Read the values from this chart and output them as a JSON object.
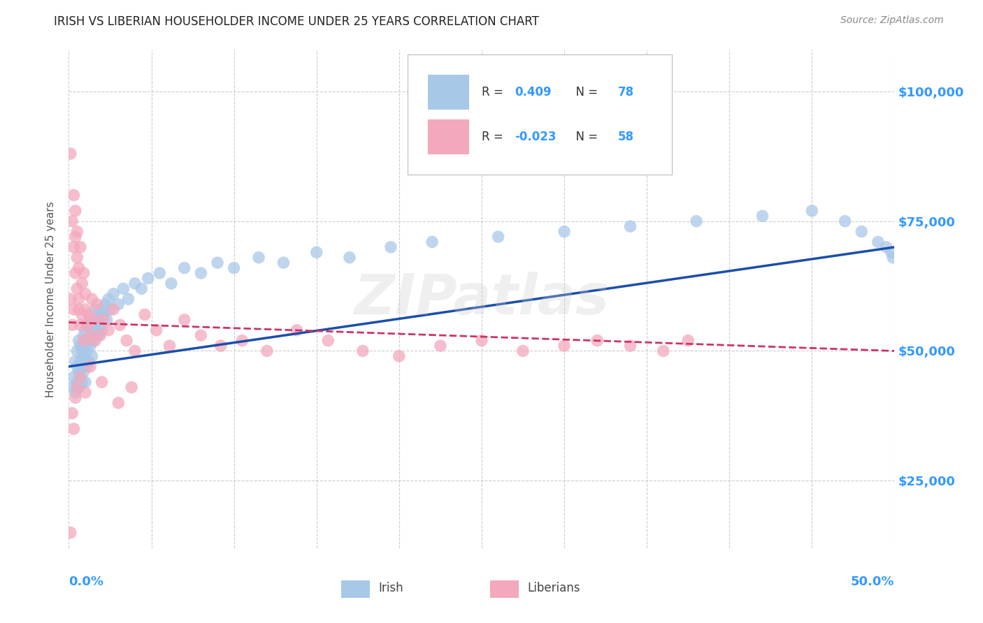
{
  "title": "IRISH VS LIBERIAN HOUSEHOLDER INCOME UNDER 25 YEARS CORRELATION CHART",
  "source": "Source: ZipAtlas.com",
  "ylabel": "Householder Income Under 25 years",
  "xlim": [
    0.0,
    0.5
  ],
  "ylim": [
    12000,
    108000
  ],
  "yticks": [
    25000,
    50000,
    75000,
    100000
  ],
  "ytick_labels": [
    "$25,000",
    "$50,000",
    "$75,000",
    "$100,000"
  ],
  "irish_R": 0.409,
  "irish_N": 78,
  "liberian_R": -0.023,
  "liberian_N": 58,
  "irish_color": "#a8c8e8",
  "liberian_color": "#f4a8bc",
  "irish_line_color": "#1a4faa",
  "liberian_line_color": "#cc3366",
  "background_color": "#ffffff",
  "grid_color": "#cccccc",
  "irish_line_x0": 0.0,
  "irish_line_x1": 0.5,
  "irish_line_y0": 47000,
  "irish_line_y1": 70000,
  "liberian_line_x0": 0.0,
  "liberian_line_x1": 0.5,
  "liberian_line_y0": 55500,
  "liberian_line_y1": 50000,
  "irish_x": [
    0.002,
    0.003,
    0.004,
    0.004,
    0.005,
    0.005,
    0.005,
    0.006,
    0.006,
    0.006,
    0.007,
    0.007,
    0.007,
    0.008,
    0.008,
    0.008,
    0.009,
    0.009,
    0.009,
    0.01,
    0.01,
    0.01,
    0.01,
    0.011,
    0.011,
    0.011,
    0.012,
    0.012,
    0.013,
    0.013,
    0.014,
    0.014,
    0.015,
    0.015,
    0.016,
    0.016,
    0.017,
    0.018,
    0.018,
    0.019,
    0.02,
    0.02,
    0.021,
    0.022,
    0.023,
    0.024,
    0.025,
    0.027,
    0.03,
    0.033,
    0.036,
    0.04,
    0.044,
    0.048,
    0.055,
    0.062,
    0.07,
    0.08,
    0.09,
    0.1,
    0.115,
    0.13,
    0.15,
    0.17,
    0.195,
    0.22,
    0.26,
    0.3,
    0.34,
    0.38,
    0.42,
    0.45,
    0.47,
    0.48,
    0.49,
    0.495,
    0.498,
    0.499
  ],
  "irish_y": [
    43000,
    45000,
    42000,
    48000,
    44000,
    47000,
    50000,
    43000,
    46000,
    52000,
    48000,
    45000,
    51000,
    47000,
    44000,
    50000,
    49000,
    46000,
    53000,
    48000,
    51000,
    44000,
    54000,
    50000,
    47000,
    55000,
    52000,
    48000,
    51000,
    56000,
    53000,
    49000,
    55000,
    52000,
    54000,
    58000,
    56000,
    53000,
    57000,
    55000,
    58000,
    54000,
    57000,
    59000,
    56000,
    60000,
    58000,
    61000,
    59000,
    62000,
    60000,
    63000,
    62000,
    64000,
    65000,
    63000,
    66000,
    65000,
    67000,
    66000,
    68000,
    67000,
    69000,
    68000,
    70000,
    71000,
    72000,
    73000,
    74000,
    75000,
    76000,
    77000,
    75000,
    73000,
    71000,
    70000,
    69000,
    68000
  ],
  "liberian_x": [
    0.001,
    0.001,
    0.002,
    0.002,
    0.003,
    0.003,
    0.003,
    0.004,
    0.004,
    0.004,
    0.005,
    0.005,
    0.005,
    0.006,
    0.006,
    0.006,
    0.007,
    0.007,
    0.008,
    0.008,
    0.009,
    0.009,
    0.01,
    0.01,
    0.011,
    0.012,
    0.013,
    0.014,
    0.015,
    0.016,
    0.017,
    0.019,
    0.021,
    0.024,
    0.027,
    0.031,
    0.035,
    0.04,
    0.046,
    0.053,
    0.061,
    0.07,
    0.08,
    0.092,
    0.105,
    0.12,
    0.138,
    0.157,
    0.178,
    0.2,
    0.225,
    0.25,
    0.275,
    0.3,
    0.32,
    0.34,
    0.36,
    0.375
  ],
  "liberian_y": [
    88000,
    60000,
    75000,
    55000,
    80000,
    70000,
    58000,
    72000,
    65000,
    77000,
    68000,
    73000,
    62000,
    58000,
    66000,
    60000,
    70000,
    55000,
    63000,
    57000,
    65000,
    52000,
    58000,
    61000,
    55000,
    57000,
    53000,
    60000,
    56000,
    52000,
    59000,
    53000,
    56000,
    54000,
    58000,
    55000,
    52000,
    50000,
    57000,
    54000,
    51000,
    56000,
    53000,
    51000,
    52000,
    50000,
    54000,
    52000,
    50000,
    49000,
    51000,
    52000,
    50000,
    51000,
    52000,
    51000,
    50000,
    52000
  ],
  "liberian_outlier_x": [
    0.001
  ],
  "liberian_outlier_y": [
    15000
  ],
  "liberian_low_x": [
    0.002,
    0.003,
    0.004,
    0.005,
    0.007,
    0.01,
    0.013,
    0.02,
    0.03,
    0.038
  ],
  "liberian_low_y": [
    38000,
    35000,
    41000,
    43000,
    45000,
    42000,
    47000,
    44000,
    40000,
    43000
  ]
}
